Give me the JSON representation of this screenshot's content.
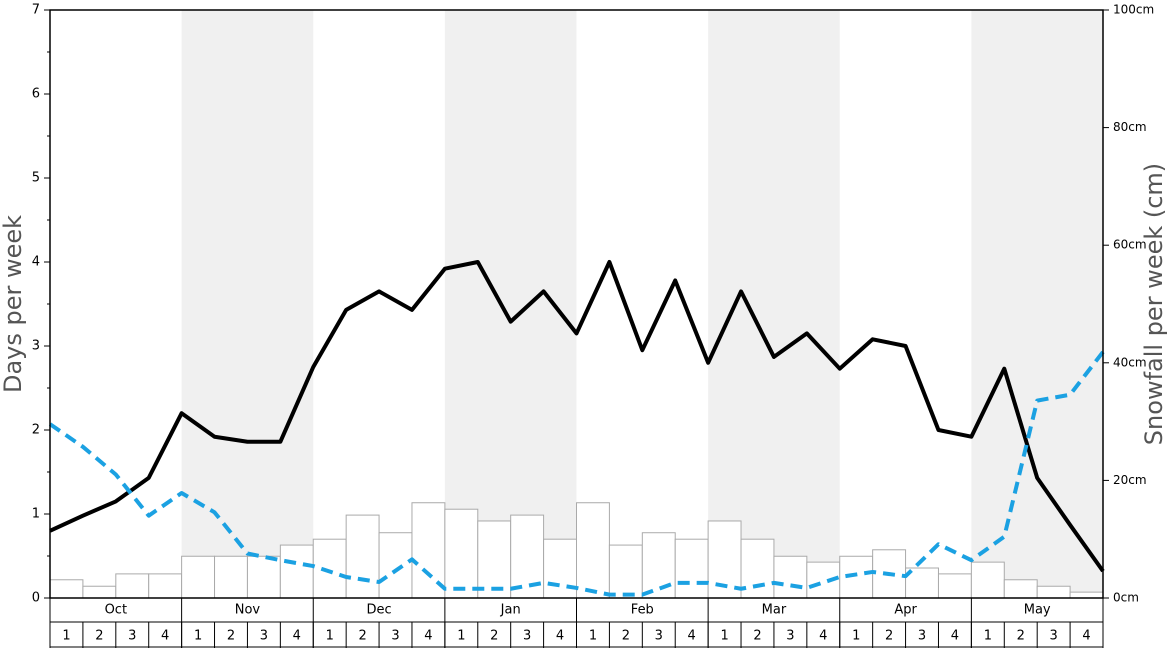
{
  "chart_data": {
    "type": "bar-line",
    "months": [
      "Oct",
      "Nov",
      "Dec",
      "Jan",
      "Feb",
      "Mar",
      "Apr",
      "May"
    ],
    "weeks": [
      1,
      2,
      3,
      4
    ],
    "ylabel": "Days per week",
    "y2label": "Snowfall per week (cm)",
    "ylim": [
      0,
      7
    ],
    "yticks": [
      0,
      1,
      2,
      3,
      4,
      5,
      6,
      7
    ],
    "y2lim": [
      0,
      100
    ],
    "y2ticks": [
      {
        "value": 0,
        "label": "0cm"
      },
      {
        "value": 20,
        "label": "20cm"
      },
      {
        "value": 40,
        "label": "40cm"
      },
      {
        "value": 60,
        "label": "60cm"
      },
      {
        "value": 80,
        "label": "80cm"
      },
      {
        "value": 100,
        "label": "100cm"
      }
    ],
    "bars": {
      "axis": "y2",
      "color": "#ffffff",
      "values": [
        3.1,
        2.0,
        4.1,
        4.1,
        7.1,
        7.1,
        7.1,
        9.0,
        10.0,
        14.1,
        11.1,
        16.2,
        15.1,
        13.1,
        14.1,
        10.0,
        16.2,
        9.0,
        11.1,
        10.0,
        13.1,
        10.0,
        7.1,
        6.1,
        7.1,
        8.2,
        5.1,
        4.1,
        6.1,
        3.1,
        2.0,
        1.0
      ]
    },
    "series": [
      {
        "color": "#000000",
        "dashed": false,
        "values": [
          0.8,
          0.98,
          1.15,
          1.43,
          2.2,
          1.92,
          1.86,
          1.86,
          2.75,
          3.43,
          3.65,
          3.43,
          3.92,
          4.0,
          3.29,
          3.65,
          3.15,
          4.0,
          2.95,
          3.78,
          2.8,
          3.65,
          2.87,
          3.15,
          2.73,
          3.08,
          3.0,
          2.0,
          1.92,
          2.73,
          1.43,
          0.87,
          0.32
        ]
      },
      {
        "color": "#1ba1e2",
        "dashed": true,
        "values": [
          2.07,
          1.8,
          1.47,
          0.98,
          1.25,
          1.02,
          0.53,
          0.45,
          0.38,
          0.25,
          0.19,
          0.46,
          0.11,
          0.11,
          0.11,
          0.18,
          0.12,
          0.04,
          0.04,
          0.18,
          0.18,
          0.11,
          0.18,
          0.12,
          0.25,
          0.31,
          0.26,
          0.64,
          0.45,
          0.73,
          2.35,
          2.42,
          2.93
        ]
      }
    ]
  }
}
